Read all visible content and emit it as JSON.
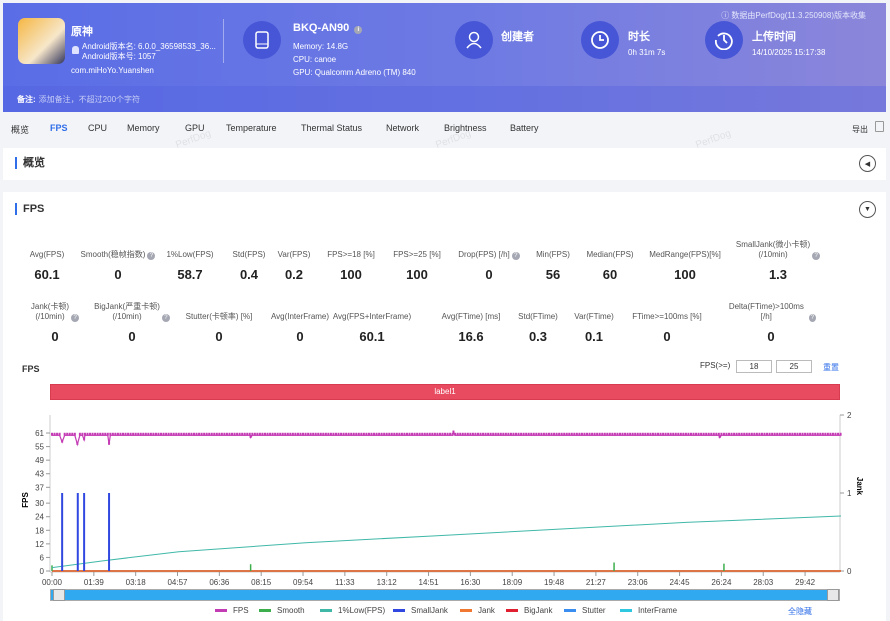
{
  "header": {
    "app_name": "原神",
    "android_version_name": "Android版本名: 6.0.0_36598533_36...",
    "android_version_code": "Android版本号: 1057",
    "package": "com.miHoYo.Yuanshen",
    "device": {
      "name": "BKQ-AN90",
      "memory": "Memory: 14.8G",
      "cpu": "CPU: canoe",
      "gpu": "GPU: Qualcomm Adreno (TM) 840"
    },
    "creator_label": "创建者",
    "duration_label": "时长",
    "duration": "0h 31m 7s",
    "upload_label": "上传时间",
    "upload_time": "14/10/2025 15:17:38",
    "collected_by": "数据由PerfDog(11.3.250908)版本收集",
    "note_label": "备注:",
    "note_placeholder": "添加备注，不超过200个字符"
  },
  "tabs": [
    "概览",
    "FPS",
    "CPU",
    "Memory",
    "GPU",
    "Temperature",
    "Thermal Status",
    "Network",
    "Brightness",
    "Battery"
  ],
  "active_tab": "FPS",
  "export_label": "导出",
  "watermark": "PerfDog",
  "overview_title": "概览",
  "fps_title": "FPS",
  "metrics_row1": [
    {
      "label": "Avg(FPS)",
      "value": "60.1"
    },
    {
      "label": "Smooth(稳帧指数)",
      "value": "0",
      "help": true
    },
    {
      "label": "1%Low(FPS)",
      "value": "58.7"
    },
    {
      "label": "Std(FPS)",
      "value": "0.4"
    },
    {
      "label": "Var(FPS)",
      "value": "0.2"
    },
    {
      "label": "FPS>=18 [%]",
      "value": "100"
    },
    {
      "label": "FPS>=25 [%]",
      "value": "100"
    },
    {
      "label": "Drop(FPS) [/h]",
      "value": "0",
      "help": true
    },
    {
      "label": "Min(FPS)",
      "value": "56"
    },
    {
      "label": "Median(FPS)",
      "value": "60"
    },
    {
      "label": "MedRange(FPS)[%]",
      "value": "100"
    },
    {
      "label": "SmallJank(微小卡顿)\n(/10min)",
      "value": "1.3",
      "help": true
    }
  ],
  "metrics_row2": [
    {
      "label": "Jank(卡顿)\n(/10min)",
      "value": "0",
      "help": true
    },
    {
      "label": "BigJank(严重卡顿)\n(/10min)",
      "value": "0",
      "help": true
    },
    {
      "label": "Stutter(卡顿率) [%]",
      "value": "0"
    },
    {
      "label": "Avg(InterFrame)",
      "value": "0"
    },
    {
      "label": "Avg(FPS+InterFrame)",
      "value": "60.1"
    },
    {
      "label": "Avg(FTime) [ms]",
      "value": "16.6"
    },
    {
      "label": "Std(FTime)",
      "value": "0.3"
    },
    {
      "label": "Var(FTime)",
      "value": "0.1"
    },
    {
      "label": "FTime>=100ms [%]",
      "value": "0"
    },
    {
      "label": "Delta(FTime)>100ms [/h]",
      "value": "0",
      "help": true
    }
  ],
  "chart_controls": {
    "title": "FPS",
    "threshold_label": "FPS(>=)",
    "threshold1": "18",
    "threshold2": "25",
    "reset_label": "重置",
    "band_label": "label1",
    "hide_all_label": "全隐藏"
  },
  "chart_data": {
    "type": "line",
    "ylabel": "FPS",
    "y2label": "Jank",
    "yticks": [
      0,
      6,
      12,
      18,
      24,
      30,
      37,
      43,
      49,
      55,
      61
    ],
    "y2ticks": [
      0,
      1,
      2
    ],
    "xticks": [
      "00:00",
      "01:39",
      "03:18",
      "04:57",
      "06:36",
      "08:15",
      "09:54",
      "11:33",
      "13:12",
      "14:51",
      "16:30",
      "18:09",
      "19:48",
      "21:27",
      "23:06",
      "24:45",
      "26:24",
      "28:03",
      "29:42"
    ],
    "duration_s": 1867,
    "series": [
      {
        "name": "FPS",
        "color": "#c43cb4",
        "typical": 60,
        "points": [
          [
            24,
            57
          ],
          [
            60,
            56
          ],
          [
            76,
            58
          ],
          [
            135,
            56
          ],
          [
            470,
            59
          ],
          [
            950,
            61
          ],
          [
            1580,
            59
          ]
        ]
      },
      {
        "name": "Smooth",
        "color": "#3cae4c",
        "points": [
          [
            0,
            1
          ],
          [
            470,
            1.2
          ],
          [
            1330,
            1.5
          ],
          [
            1590,
            1.3
          ]
        ]
      },
      {
        "name": "1%Low(FPS)",
        "color": "#40b8a8",
        "points": [
          [
            0,
            1.5
          ],
          [
            120,
            4.5
          ],
          [
            300,
            8.5
          ],
          [
            600,
            12.5
          ],
          [
            900,
            15.5
          ],
          [
            1200,
            18.5
          ],
          [
            1500,
            21.5
          ],
          [
            1867,
            24.3
          ]
        ]
      },
      {
        "name": "SmallJank",
        "color": "#3048e0",
        "axis": "right",
        "points": [
          [
            24,
            1
          ],
          [
            61,
            1
          ],
          [
            76,
            1
          ],
          [
            135,
            1
          ]
        ]
      },
      {
        "name": "Jank",
        "color": "#f07830",
        "value": 0
      },
      {
        "name": "BigJank",
        "color": "#e02030",
        "value": 0
      },
      {
        "name": "Stutter",
        "color": "#3a8ef0",
        "value": 0
      },
      {
        "name": "InterFrame",
        "color": "#30c8e0",
        "value": 0
      }
    ]
  }
}
